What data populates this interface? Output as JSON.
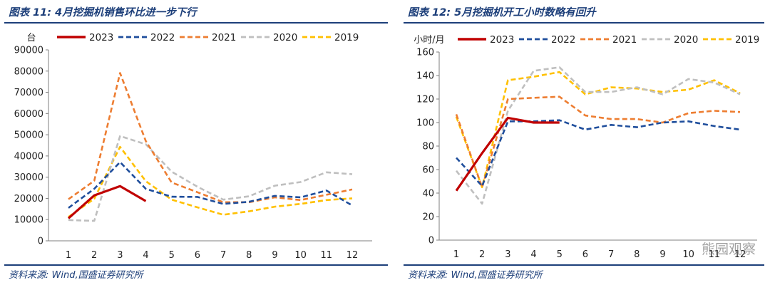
{
  "watermark": "熊园观察",
  "chart_data": [
    {
      "type": "line",
      "title": "图表 11:  4月挖掘机销售环比进一步下行",
      "source": "资料来源:  Wind,国盛证券研究所",
      "ylabel": "台",
      "xlabel": "",
      "ylim": [
        0,
        90000
      ],
      "yticks": [
        0,
        10000,
        20000,
        30000,
        40000,
        50000,
        60000,
        70000,
        80000,
        90000
      ],
      "x": [
        1,
        2,
        3,
        4,
        5,
        6,
        7,
        8,
        9,
        10,
        11,
        12
      ],
      "grid": false,
      "legend": "top",
      "series": [
        {
          "name": "2023",
          "color": "#c00000",
          "dash": "solid",
          "values": [
            10600,
            21400,
            25800,
            18700,
            null,
            null,
            null,
            null,
            null,
            null,
            null,
            null
          ]
        },
        {
          "name": "2022",
          "color": "#1f4e9c",
          "dash": "dashed",
          "values": [
            15500,
            24500,
            37100,
            24500,
            20800,
            20700,
            17400,
            18400,
            21200,
            20500,
            23700,
            16700
          ]
        },
        {
          "name": "2021",
          "color": "#ed7d31",
          "dash": "dashed",
          "values": [
            19600,
            28300,
            79100,
            47000,
            27500,
            22900,
            18200,
            18200,
            20500,
            19200,
            21700,
            24200
          ]
        },
        {
          "name": "2020",
          "color": "#bfbfbf",
          "dash": "dashed",
          "values": [
            9800,
            9400,
            49400,
            45500,
            32600,
            25500,
            19400,
            21000,
            26000,
            27700,
            32300,
            31400
          ]
        },
        {
          "name": "2019",
          "color": "#ffc000",
          "dash": "dashed",
          "values": [
            11300,
            19800,
            44300,
            28100,
            19400,
            15800,
            12300,
            13900,
            16100,
            17400,
            19200,
            20000
          ]
        }
      ]
    },
    {
      "type": "line",
      "title": "图表 12:  5月挖掘机开工小时数略有回升",
      "source": "资料来源:  Wind,国盛证券研究所",
      "ylabel": "小时/月",
      "xlabel": "",
      "ylim": [
        0,
        160
      ],
      "yticks": [
        0,
        20,
        40,
        60,
        80,
        100,
        120,
        140,
        160
      ],
      "x": [
        1,
        2,
        3,
        4,
        5,
        6,
        7,
        8,
        9,
        10,
        11,
        12
      ],
      "grid": false,
      "legend": "top",
      "series": [
        {
          "name": "2023",
          "color": "#c00000",
          "dash": "solid",
          "values": [
            42,
            74,
            104,
            100,
            100,
            null,
            null,
            null,
            null,
            null,
            null,
            null
          ]
        },
        {
          "name": "2022",
          "color": "#1f4e9c",
          "dash": "dashed",
          "values": [
            70,
            46,
            101,
            101,
            102,
            94,
            98,
            96,
            100,
            101,
            97,
            94
          ]
        },
        {
          "name": "2021",
          "color": "#ed7d31",
          "dash": "dashed",
          "values": [
            107,
            45,
            120,
            121,
            122,
            106,
            103,
            103,
            100,
            108,
            110,
            109
          ]
        },
        {
          "name": "2020",
          "color": "#bfbfbf",
          "dash": "dashed",
          "values": [
            59,
            31,
            110,
            144,
            147,
            126,
            126,
            130,
            124,
            137,
            134,
            124
          ]
        },
        {
          "name": "2019",
          "color": "#ffc000",
          "dash": "dashed",
          "values": [
            105,
            45,
            136,
            139,
            143,
            124,
            130,
            129,
            126,
            128,
            136,
            125
          ]
        }
      ]
    }
  ]
}
